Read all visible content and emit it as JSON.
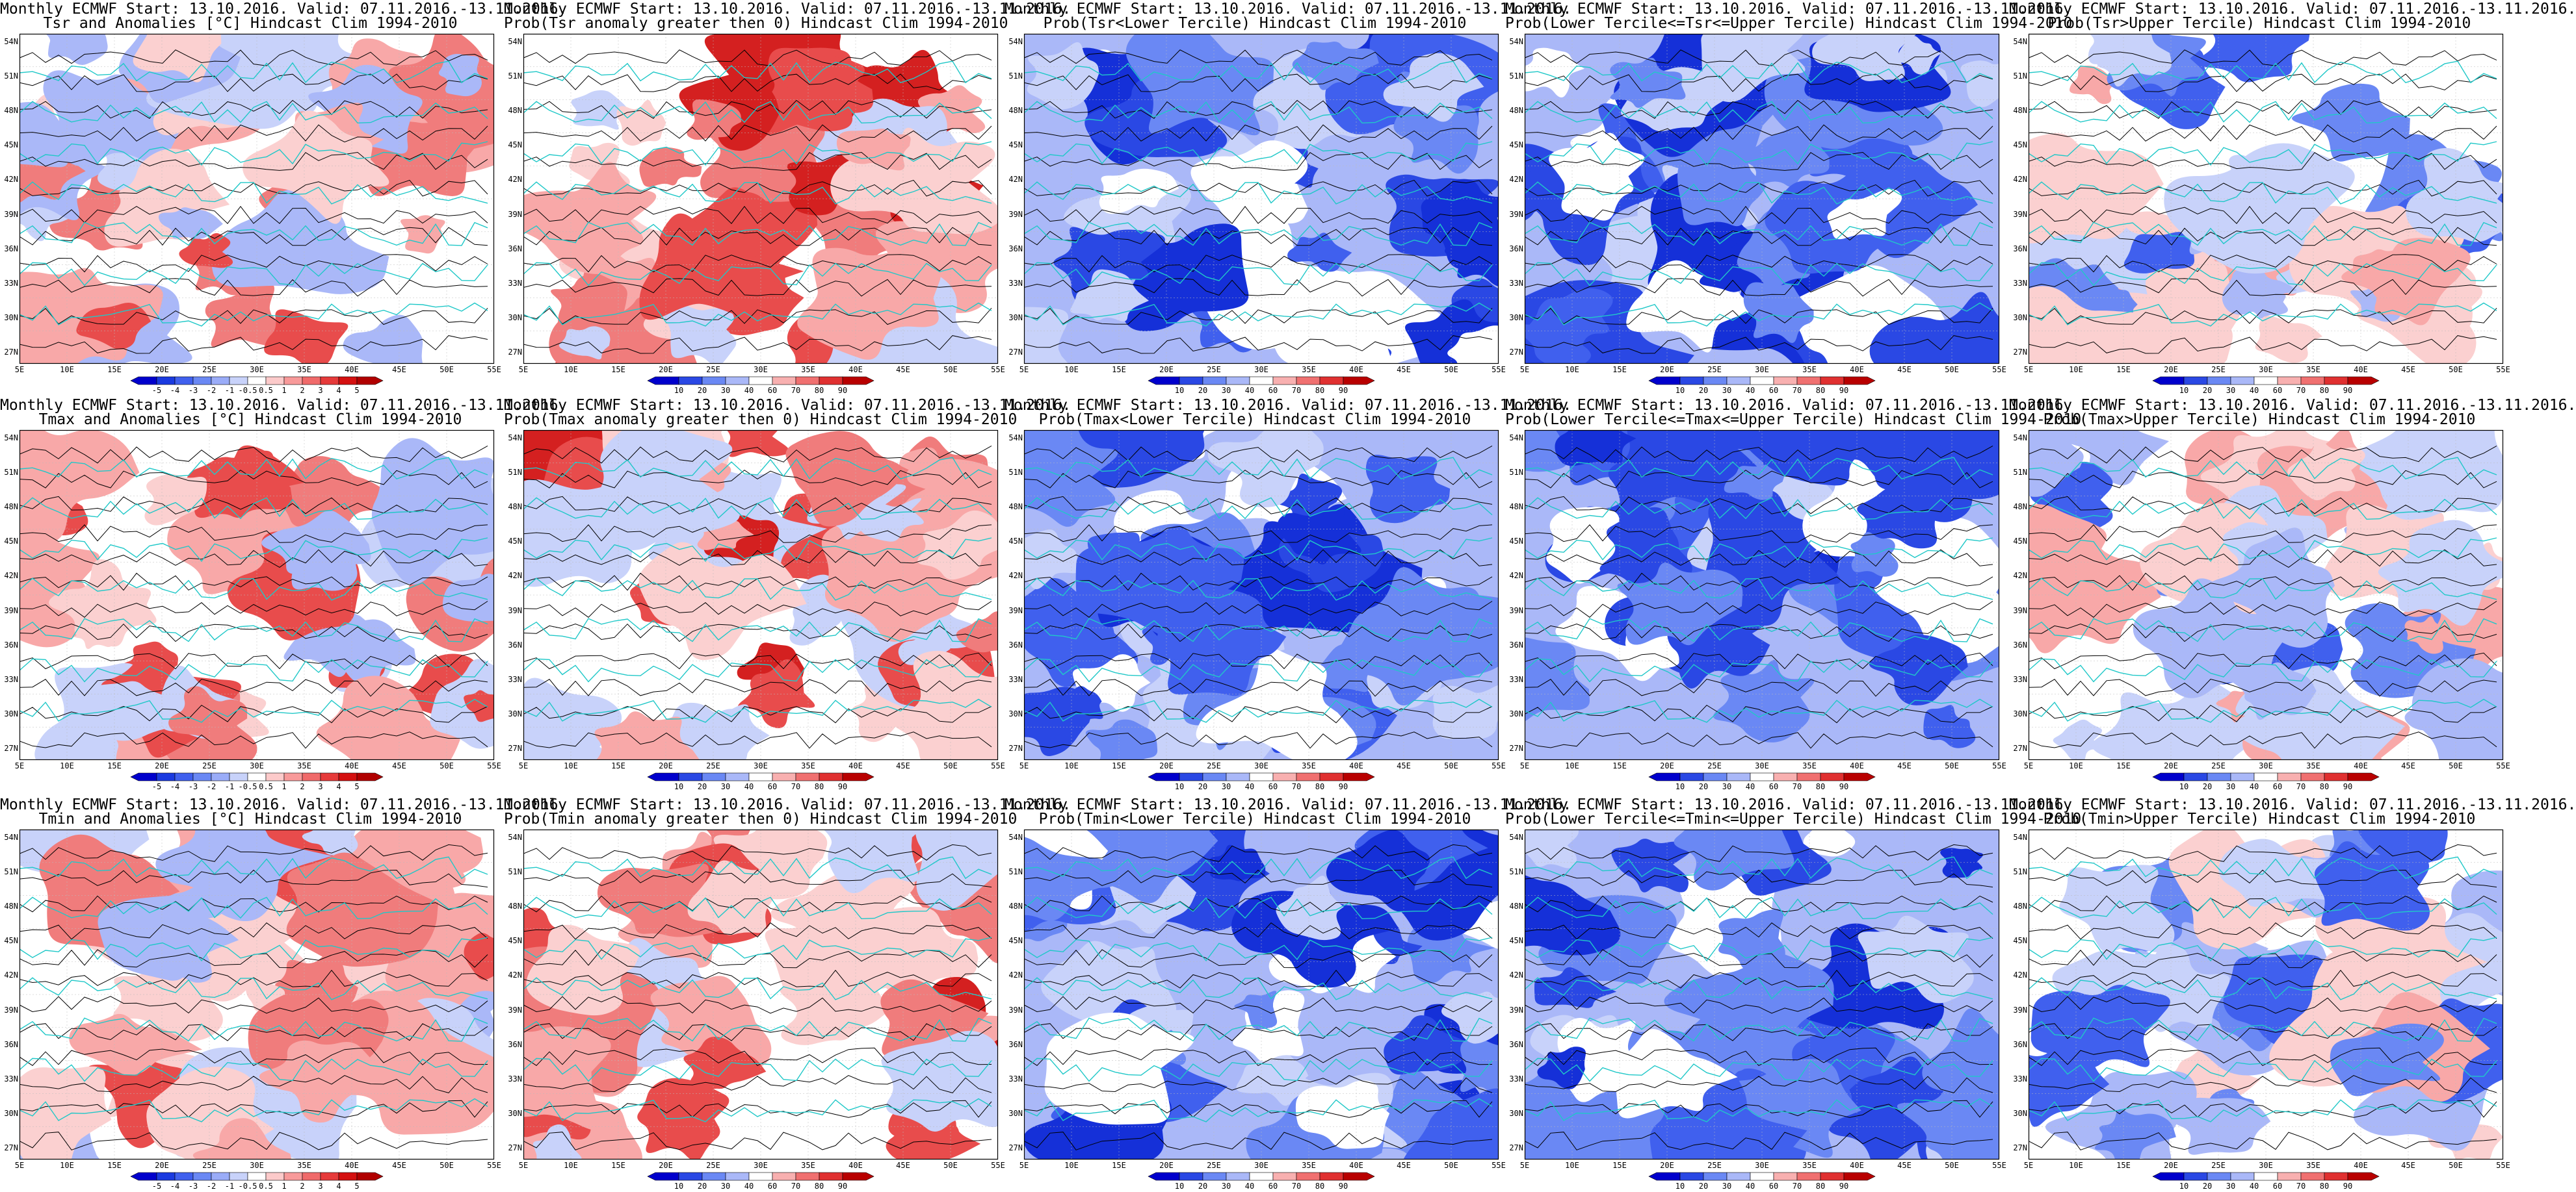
{
  "figure": {
    "rows": [
      {
        "variable": "Tsr",
        "panels": [
          {
            "title_line1": "Monthly ECMWF Start: 13.10.2016. Valid: 07.11.2016.-13.11.2016.",
            "title_line2": "Tsr and Anomalies [°C] Hindcast Clim 1994-2010",
            "palette": "anom",
            "scale": "anom"
          },
          {
            "title_line1": "Monthly ECMWF Start: 13.10.2016. Valid: 07.11.2016.-13.11.2016.",
            "title_line2": "Prob(Tsr anomaly greater then 0) Hindcast Clim 1994-2010",
            "palette": "warm",
            "scale": "prob"
          },
          {
            "title_line1": "Monthly ECMWF Start: 13.10.2016. Valid: 07.11.2016.-13.11.2016.",
            "title_line2": "Prob(Tsr<Lower Tercile) Hindcast Clim 1994-2010",
            "palette": "blue",
            "scale": "prob"
          },
          {
            "title_line1": "Monthly ECMWF Start: 13.10.2016. Valid: 07.11.2016.-13.11.2016.",
            "title_line2": "Prob(Lower Tercile<=Tsr<=Upper Tercile) Hindcast Clim 1994-2010",
            "palette": "blue",
            "scale": "prob"
          },
          {
            "title_line1": "Monthly ECMWF Start: 13.10.2016. Valid: 07.11.2016.-13.11.2016.",
            "title_line2": "Prob(Tsr>Upper Tercile) Hindcast Clim 1994-2010",
            "palette": "mix",
            "scale": "prob"
          }
        ]
      },
      {
        "variable": "Tmax",
        "panels": [
          {
            "title_line1": "Monthly ECMWF Start: 13.10.2016. Valid: 07.11.2016.-13.11.2016.",
            "title_line2": "Tmax and Anomalies [°C] Hindcast Clim 1994-2010",
            "palette": "anom",
            "scale": "anom"
          },
          {
            "title_line1": "Monthly ECMWF Start: 13.10.2016. Valid: 07.11.2016.-13.11.2016.",
            "title_line2": "Prob(Tmax anomaly greater then 0) Hindcast Clim 1994-2010",
            "palette": "warm",
            "scale": "prob"
          },
          {
            "title_line1": "Monthly ECMWF Start: 13.10.2016. Valid: 07.11.2016.-13.11.2016.",
            "title_line2": "Prob(Tmax<Lower Tercile) Hindcast Clim 1994-2010",
            "palette": "blue",
            "scale": "prob"
          },
          {
            "title_line1": "Monthly ECMWF Start: 13.10.2016. Valid: 07.11.2016.-13.11.2016.",
            "title_line2": "Prob(Lower Tercile<=Tmax<=Upper Tercile) Hindcast Clim 1994-2010",
            "palette": "blue",
            "scale": "prob"
          },
          {
            "title_line1": "Monthly ECMWF Start: 13.10.2016. Valid: 07.11.2016.-13.11.2016.",
            "title_line2": "Prob(Tmax>Upper Tercile) Hindcast Clim 1994-2010",
            "palette": "mix",
            "scale": "prob"
          }
        ]
      },
      {
        "variable": "Tmin",
        "panels": [
          {
            "title_line1": "Monthly ECMWF Start: 13.10.2016. Valid: 07.11.2016.-13.11.2016.",
            "title_line2": "Tmin and Anomalies [°C] Hindcast Clim 1994-2010",
            "palette": "anom",
            "scale": "anom"
          },
          {
            "title_line1": "Monthly ECMWF Start: 13.10.2016. Valid: 07.11.2016.-13.11.2016.",
            "title_line2": "Prob(Tmin anomaly greater then 0) Hindcast Clim 1994-2010",
            "palette": "warm",
            "scale": "prob"
          },
          {
            "title_line1": "Monthly ECMWF Start: 13.10.2016. Valid: 07.11.2016.-13.11.2016.",
            "title_line2": "Prob(Tmin<Lower Tercile) Hindcast Clim 1994-2010",
            "palette": "blue",
            "scale": "prob"
          },
          {
            "title_line1": "Monthly ECMWF Start: 13.10.2016. Valid: 07.11.2016.-13.11.2016.",
            "title_line2": "Prob(Lower Tercile<=Tmin<=Upper Tercile) Hindcast Clim 1994-2010",
            "palette": "blue",
            "scale": "prob"
          },
          {
            "title_line1": "Monthly ECMWF Start: 13.10.2016. Valid: 07.11.2016.-13.11.2016.",
            "title_line2": "Prob(Tmin>Upper Tercile) Hindcast Clim 1994-2010",
            "palette": "mix",
            "scale": "prob"
          }
        ]
      }
    ]
  },
  "axes": {
    "lat_labels": [
      "54N",
      "51N",
      "48N",
      "45N",
      "42N",
      "39N",
      "36N",
      "33N",
      "30N",
      "27N"
    ],
    "lon_labels": [
      "5E",
      "10E",
      "15E",
      "20E",
      "25E",
      "30E",
      "35E",
      "40E",
      "45E",
      "50E",
      "55E"
    ],
    "lat_range": [
      25.5,
      55.5
    ],
    "lon_range": [
      5,
      55
    ]
  },
  "colorbars": {
    "anom": {
      "labels": [
        "-5",
        "-4",
        "-3",
        "-2",
        "-1",
        "-0.5",
        "0.5",
        "1",
        "2",
        "3",
        "4",
        "5"
      ],
      "colors": [
        "#0000cc",
        "#1a3ae0",
        "#4060ee",
        "#6a88f4",
        "#9aacf8",
        "#c8d2fa",
        "#ffffff",
        "#fccaca",
        "#f89a9a",
        "#f06a6a",
        "#e63a3a",
        "#d41010",
        "#b00000"
      ]
    },
    "prob": {
      "labels": [
        "10",
        "20",
        "30",
        "40",
        "60",
        "70",
        "80",
        "90"
      ],
      "colors": [
        "#0000cc",
        "#2a48e4",
        "#6a88f4",
        "#aab8f8",
        "#ffffff",
        "#f8b0b0",
        "#f07070",
        "#e03030",
        "#b80000"
      ]
    }
  },
  "map_colors": {
    "coast": "#20c8c8",
    "contour": "#000000"
  }
}
